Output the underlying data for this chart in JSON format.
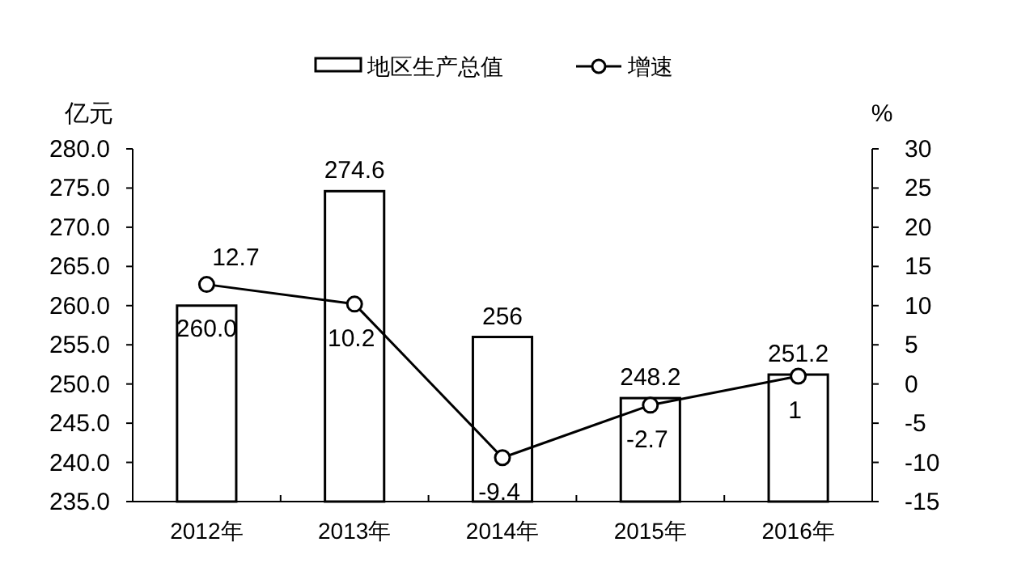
{
  "chart_data": {
    "type": "bar",
    "categories": [
      "2012年",
      "2013年",
      "2014年",
      "2015年",
      "2016年"
    ],
    "ylabel": "亿元",
    "y2label": "%",
    "series": [
      {
        "name": "地区生产总值",
        "color": "#ffffff",
        "values": [
          260.0,
          274.6,
          256,
          248.2,
          251.2
        ],
        "value_labels": [
          "260.0",
          "274.6",
          "256",
          "248.2",
          "251.2"
        ]
      },
      {
        "name": "增速",
        "type": "line",
        "axis": "y2",
        "color": "#000000",
        "marker": "circle",
        "values": [
          12.7,
          10.2,
          -9.4,
          -2.7,
          1
        ],
        "value_labels": [
          "12.7",
          "10.2",
          "-9.4",
          "-2.7",
          "1"
        ]
      }
    ],
    "ylim": [
      235,
      280
    ],
    "yticks": [
      {
        "value": 235,
        "label": "235.0"
      },
      {
        "value": 240,
        "label": "240.0"
      },
      {
        "value": 245,
        "label": "245.0"
      },
      {
        "value": 250,
        "label": "250.0"
      },
      {
        "value": 255,
        "label": "255.0"
      },
      {
        "value": 260,
        "label": "260.0"
      },
      {
        "value": 265,
        "label": "265.0"
      },
      {
        "value": 270,
        "label": "270.0"
      },
      {
        "value": 275,
        "label": "275.0"
      },
      {
        "value": 280,
        "label": "280.0"
      }
    ],
    "y2lim": [
      -15,
      30
    ],
    "y2ticks": [
      -15,
      -10,
      -5,
      0,
      5,
      10,
      15,
      20,
      25,
      30
    ],
    "legend": "top",
    "grid": false
  }
}
